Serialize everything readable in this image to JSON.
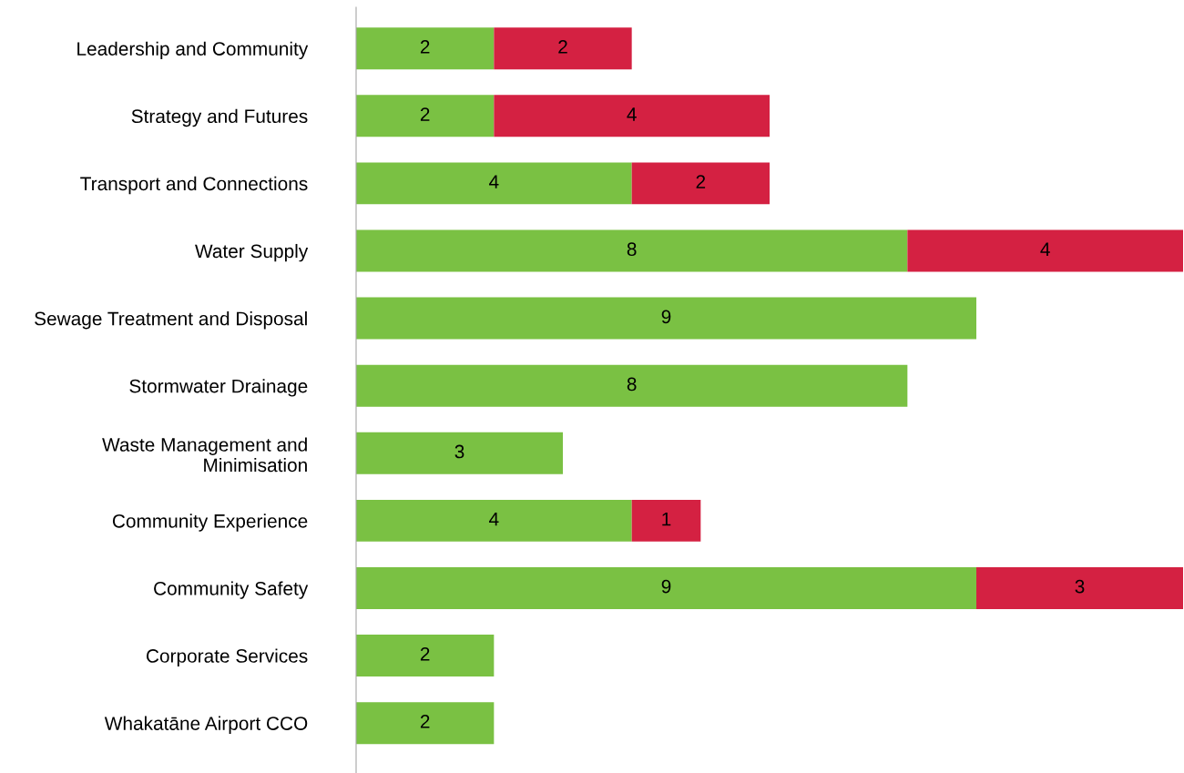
{
  "chart_data": {
    "type": "bar",
    "orientation": "horizontal",
    "stacked": true,
    "data_labels": true,
    "tick_labels": "y",
    "grid": false,
    "legend": false,
    "categories": [
      "Leadership and Community",
      "Strategy and Futures",
      "Transport and Connections",
      "Water Supply",
      "Sewage Treatment and Disposal",
      "Stormwater Drainage",
      "Waste Management and\nMinimisation",
      "Community Experience",
      "Community Safety",
      "Corporate Services",
      "Whakatāne Airport CCO"
    ],
    "xlim": [
      0,
      12
    ],
    "series": [
      {
        "color": "#7ac143",
        "values": [
          2,
          2,
          4,
          8,
          9,
          8,
          3,
          4,
          9,
          2,
          2
        ]
      },
      {
        "color": "#d42142",
        "values": [
          2,
          4,
          2,
          4,
          null,
          null,
          null,
          1,
          3,
          null,
          null
        ]
      }
    ]
  }
}
